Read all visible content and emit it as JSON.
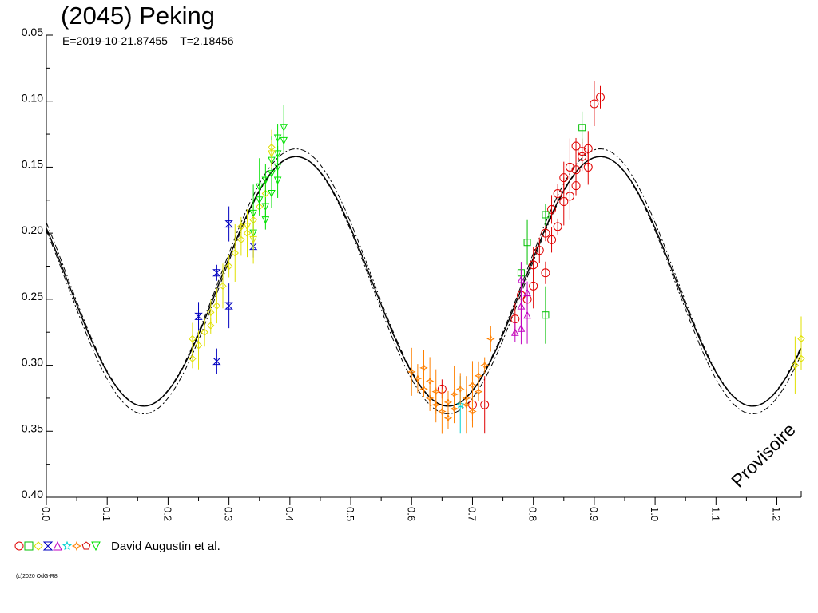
{
  "header": {
    "title": "(2045) Peking",
    "subtitle": "E=2019-10-21.87455    T=2.18456"
  },
  "legend": {
    "text": "David Augustin et al."
  },
  "footer": {
    "copyright": "(c)2020 OdG-R8"
  },
  "watermark": "Provisoire",
  "chart_data": {
    "type": "scatter",
    "title": "(2045) Peking",
    "subtitle": "E=2019-10-21.87455    T=2.18456",
    "xlabel": "",
    "ylabel": "",
    "xlim": [
      0.0,
      1.24
    ],
    "ylim": [
      0.05,
      0.4
    ],
    "y_inverted": true,
    "x_ticks": [
      "0.0",
      "0.1",
      "0.2",
      "0.3",
      "0.4",
      "0.5",
      "0.6",
      "0.7",
      "0.8",
      "0.9",
      "1.0",
      "1.1",
      "1.2"
    ],
    "y_ticks": [
      "0.05",
      "0.10",
      "0.15",
      "0.20",
      "0.25",
      "0.30",
      "0.35",
      "0.40"
    ],
    "grid": false,
    "legend_position": "bottom-left",
    "fit_curve": {
      "mean": 0.2365,
      "amplitude": 0.0945,
      "max_phase": 0.41,
      "period": 0.5,
      "envelope_offset": 0.003
    },
    "series": [
      {
        "marker": "circle",
        "color": "#e00000",
        "points": [
          [
            0.87,
            0.134
          ],
          [
            0.88,
            0.138
          ],
          [
            0.89,
            0.136
          ],
          [
            0.9,
            0.102
          ],
          [
            0.91,
            0.097
          ],
          [
            0.86,
            0.15
          ],
          [
            0.85,
            0.158
          ],
          [
            0.84,
            0.17
          ],
          [
            0.85,
            0.176
          ],
          [
            0.83,
            0.182
          ],
          [
            0.82,
            0.2
          ],
          [
            0.81,
            0.213
          ],
          [
            0.8,
            0.224
          ],
          [
            0.8,
            0.24
          ],
          [
            0.79,
            0.25
          ],
          [
            0.78,
            0.247
          ],
          [
            0.77,
            0.265
          ],
          [
            0.87,
            0.164
          ],
          [
            0.86,
            0.172
          ],
          [
            0.88,
            0.142
          ],
          [
            0.84,
            0.195
          ],
          [
            0.83,
            0.205
          ],
          [
            0.89,
            0.15
          ],
          [
            0.87,
            0.152
          ],
          [
            0.82,
            0.23
          ],
          [
            0.72,
            0.33
          ],
          [
            0.7,
            0.33
          ],
          [
            0.65,
            0.318
          ]
        ]
      },
      {
        "marker": "square",
        "color": "#00c000",
        "points": [
          [
            0.79,
            0.207
          ],
          [
            0.82,
            0.186
          ],
          [
            0.82,
            0.262
          ],
          [
            0.88,
            0.12
          ],
          [
            0.78,
            0.23
          ]
        ]
      },
      {
        "marker": "diamond",
        "color": "#e0e000",
        "points": [
          [
            0.24,
            0.28
          ],
          [
            0.24,
            0.295
          ],
          [
            0.25,
            0.285
          ],
          [
            0.26,
            0.275
          ],
          [
            0.27,
            0.27
          ],
          [
            0.27,
            0.26
          ],
          [
            0.28,
            0.255
          ],
          [
            0.29,
            0.24
          ],
          [
            0.3,
            0.225
          ],
          [
            0.31,
            0.215
          ],
          [
            0.32,
            0.205
          ],
          [
            0.32,
            0.195
          ],
          [
            0.33,
            0.2
          ],
          [
            0.34,
            0.19
          ],
          [
            0.35,
            0.18
          ],
          [
            0.36,
            0.17
          ],
          [
            0.37,
            0.135
          ],
          [
            1.24,
            0.28
          ],
          [
            1.24,
            0.295
          ],
          [
            1.23,
            0.3
          ]
        ]
      },
      {
        "marker": "hourglass",
        "color": "#0000c0",
        "points": [
          [
            0.25,
            0.263
          ],
          [
            0.28,
            0.23
          ],
          [
            0.28,
            0.297
          ],
          [
            0.3,
            0.193
          ],
          [
            0.3,
            0.255
          ],
          [
            0.34,
            0.21
          ]
        ]
      },
      {
        "marker": "triangle-up",
        "color": "#c000c0",
        "points": [
          [
            0.78,
            0.235
          ],
          [
            0.78,
            0.255
          ],
          [
            0.79,
            0.245
          ],
          [
            0.79,
            0.262
          ],
          [
            0.78,
            0.272
          ],
          [
            0.77,
            0.275
          ]
        ]
      },
      {
        "marker": "star",
        "color": "#00d0d0",
        "points": [
          [
            0.68,
            0.33
          ]
        ]
      },
      {
        "marker": "cross",
        "color": "#ff8000",
        "points": [
          [
            0.6,
            0.305
          ],
          [
            0.61,
            0.31
          ],
          [
            0.62,
            0.318
          ],
          [
            0.63,
            0.325
          ],
          [
            0.64,
            0.33
          ],
          [
            0.65,
            0.335
          ],
          [
            0.66,
            0.328
          ],
          [
            0.67,
            0.322
          ],
          [
            0.68,
            0.318
          ],
          [
            0.69,
            0.325
          ],
          [
            0.7,
            0.315
          ],
          [
            0.71,
            0.308
          ],
          [
            0.72,
            0.3
          ],
          [
            0.73,
            0.28
          ],
          [
            0.62,
            0.302
          ],
          [
            0.64,
            0.32
          ],
          [
            0.66,
            0.34
          ],
          [
            0.69,
            0.33
          ],
          [
            0.7,
            0.335
          ],
          [
            0.71,
            0.32
          ],
          [
            0.63,
            0.312
          ],
          [
            0.67,
            0.333
          ]
        ]
      },
      {
        "marker": "pentagon",
        "color": "#d00000",
        "points": []
      },
      {
        "marker": "triangle-down",
        "color": "#00e000",
        "points": [
          [
            0.35,
            0.175
          ],
          [
            0.35,
            0.165
          ],
          [
            0.36,
            0.16
          ],
          [
            0.36,
            0.18
          ],
          [
            0.37,
            0.155
          ],
          [
            0.37,
            0.17
          ],
          [
            0.38,
            0.14
          ],
          [
            0.38,
            0.15
          ],
          [
            0.38,
            0.16
          ],
          [
            0.39,
            0.12
          ],
          [
            0.39,
            0.13
          ],
          [
            0.34,
            0.185
          ],
          [
            0.34,
            0.2
          ],
          [
            0.36,
            0.19
          ],
          [
            0.37,
            0.145
          ],
          [
            0.38,
            0.128
          ]
        ]
      },
      {
        "marker": "triangle-down",
        "color": "#e0e000",
        "points": [
          [
            0.33,
            0.195
          ],
          [
            0.34,
            0.205
          ],
          [
            0.37,
            0.14
          ]
        ]
      }
    ]
  }
}
